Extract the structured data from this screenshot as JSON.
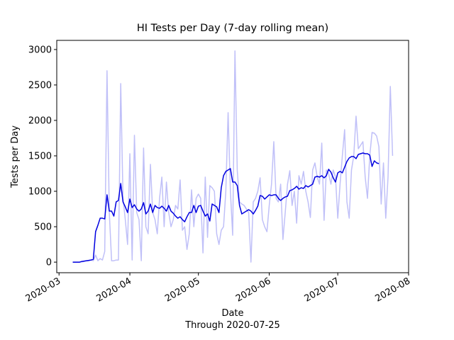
{
  "chart_data": {
    "type": "line",
    "title": "HI Tests per Day (7-day rolling mean)",
    "xlabel": "Date",
    "caption": "Through 2020-07-25",
    "ylabel": "Tests per Day",
    "x": [
      "2020-03-07",
      "2020-03-08",
      "2020-03-09",
      "2020-03-10",
      "2020-03-11",
      "2020-03-12",
      "2020-03-13",
      "2020-03-14",
      "2020-03-15",
      "2020-03-16",
      "2020-03-17",
      "2020-03-18",
      "2020-03-19",
      "2020-03-20",
      "2020-03-21",
      "2020-03-22",
      "2020-03-23",
      "2020-03-24",
      "2020-03-25",
      "2020-03-26",
      "2020-03-27",
      "2020-03-28",
      "2020-03-29",
      "2020-03-30",
      "2020-03-31",
      "2020-04-01",
      "2020-04-02",
      "2020-04-03",
      "2020-04-04",
      "2020-04-05",
      "2020-04-06",
      "2020-04-07",
      "2020-04-08",
      "2020-04-09",
      "2020-04-10",
      "2020-04-11",
      "2020-04-12",
      "2020-04-13",
      "2020-04-14",
      "2020-04-15",
      "2020-04-16",
      "2020-04-17",
      "2020-04-18",
      "2020-04-19",
      "2020-04-20",
      "2020-04-21",
      "2020-04-22",
      "2020-04-23",
      "2020-04-24",
      "2020-04-25",
      "2020-04-26",
      "2020-04-27",
      "2020-04-28",
      "2020-04-29",
      "2020-04-30",
      "2020-05-01",
      "2020-05-02",
      "2020-05-03",
      "2020-05-04",
      "2020-05-05",
      "2020-05-06",
      "2020-05-07",
      "2020-05-08",
      "2020-05-09",
      "2020-05-10",
      "2020-05-11",
      "2020-05-12",
      "2020-05-13",
      "2020-05-14",
      "2020-05-15",
      "2020-05-16",
      "2020-05-17",
      "2020-05-18",
      "2020-05-19",
      "2020-05-20",
      "2020-05-21",
      "2020-05-22",
      "2020-05-23",
      "2020-05-24",
      "2020-05-25",
      "2020-05-26",
      "2020-05-27",
      "2020-05-28",
      "2020-05-29",
      "2020-05-30",
      "2020-05-31",
      "2020-06-01",
      "2020-06-02",
      "2020-06-03",
      "2020-06-04",
      "2020-06-05",
      "2020-06-06",
      "2020-06-07",
      "2020-06-08",
      "2020-06-09",
      "2020-06-10",
      "2020-06-11",
      "2020-06-12",
      "2020-06-13",
      "2020-06-14",
      "2020-06-15",
      "2020-06-16",
      "2020-06-17",
      "2020-06-18",
      "2020-06-19",
      "2020-06-20",
      "2020-06-21",
      "2020-06-22",
      "2020-06-23",
      "2020-06-24",
      "2020-06-25",
      "2020-06-26",
      "2020-06-27",
      "2020-06-28",
      "2020-06-29",
      "2020-06-30",
      "2020-07-01",
      "2020-07-02",
      "2020-07-03",
      "2020-07-04",
      "2020-07-05",
      "2020-07-06",
      "2020-07-07",
      "2020-07-08",
      "2020-07-09",
      "2020-07-10",
      "2020-07-11",
      "2020-07-12",
      "2020-07-13",
      "2020-07-14",
      "2020-07-15",
      "2020-07-16",
      "2020-07-17",
      "2020-07-18",
      "2020-07-19",
      "2020-07-20",
      "2020-07-21",
      "2020-07-22",
      "2020-07-23",
      "2020-07-24",
      "2020-07-25"
    ],
    "series": [
      {
        "color": "#c0c0f8",
        "width": 1.5,
        "values": [
          0,
          0,
          0,
          0,
          5,
          10,
          20,
          20,
          30,
          20,
          100,
          20,
          50,
          30,
          150,
          2700,
          700,
          20,
          20,
          30,
          30,
          2520,
          900,
          600,
          250,
          1530,
          30,
          1790,
          700,
          600,
          20,
          1610,
          500,
          400,
          1380,
          700,
          600,
          400,
          900,
          1200,
          500,
          1130,
          700,
          500,
          600,
          800,
          750,
          1160,
          450,
          500,
          180,
          400,
          1020,
          500,
          900,
          960,
          900,
          130,
          1200,
          350,
          1080,
          1050,
          1000,
          400,
          250,
          450,
          500,
          1000,
          2110,
          1000,
          380,
          2980,
          1300,
          850,
          820,
          800,
          750,
          700,
          0,
          850,
          900,
          1000,
          1190,
          600,
          500,
          430,
          800,
          1100,
          1700,
          900,
          850,
          1100,
          320,
          700,
          1100,
          1290,
          800,
          1000,
          550,
          1220,
          1100,
          1280,
          1000,
          850,
          630,
          1300,
          1400,
          1200,
          1100,
          1680,
          590,
          1300,
          1250,
          1100,
          1300,
          1200,
          620,
          1100,
          1500,
          1870,
          850,
          620,
          1300,
          1500,
          2060,
          1600,
          1650,
          1700,
          1200,
          900,
          1500,
          1830,
          1820,
          1780,
          1630,
          820,
          1400,
          620,
          1200,
          2480,
          1500
        ]
      },
      {
        "color": "#0000e0",
        "width": 1.5,
        "values": [
          0,
          0,
          0,
          0,
          10,
          15,
          20,
          25,
          30,
          40,
          430,
          520,
          620,
          620,
          610,
          950,
          720,
          720,
          650,
          850,
          870,
          1110,
          850,
          780,
          700,
          890,
          770,
          810,
          750,
          720,
          750,
          840,
          680,
          720,
          820,
          700,
          800,
          770,
          760,
          790,
          760,
          720,
          800,
          720,
          690,
          650,
          620,
          640,
          600,
          570,
          640,
          700,
          700,
          800,
          700,
          790,
          800,
          720,
          650,
          680,
          580,
          820,
          800,
          780,
          700,
          1050,
          1220,
          1280,
          1300,
          1320,
          1130,
          1130,
          1080,
          800,
          680,
          700,
          720,
          740,
          720,
          680,
          730,
          790,
          940,
          930,
          890,
          920,
          950,
          940,
          950,
          950,
          900,
          870,
          900,
          920,
          930,
          1010,
          1020,
          1040,
          1070,
          1030,
          1050,
          1040,
          1080,
          1060,
          1080,
          1100,
          1200,
          1210,
          1200,
          1220,
          1190,
          1220,
          1310,
          1270,
          1190,
          1130,
          1260,
          1280,
          1260,
          1340,
          1420,
          1470,
          1490,
          1490,
          1460,
          1520,
          1530,
          1540,
          1530,
          1530,
          1510,
          1350,
          1430,
          1400,
          1390,
          null,
          null,
          null,
          null,
          null,
          null
        ]
      }
    ],
    "xlim": [
      "2020-02-29",
      "2020-08-01"
    ],
    "xticks": [
      {
        "value": "2020-03-01",
        "label": "2020-03"
      },
      {
        "value": "2020-04-01",
        "label": "2020-04"
      },
      {
        "value": "2020-05-01",
        "label": "2020-05"
      },
      {
        "value": "2020-06-01",
        "label": "2020-06"
      },
      {
        "value": "2020-07-01",
        "label": "2020-07"
      },
      {
        "value": "2020-08-01",
        "label": "2020-08"
      }
    ],
    "ylim": [
      -149,
      3129
    ],
    "yticks": [
      0,
      500,
      1000,
      1500,
      2000,
      2500,
      3000
    ],
    "grid": false
  }
}
